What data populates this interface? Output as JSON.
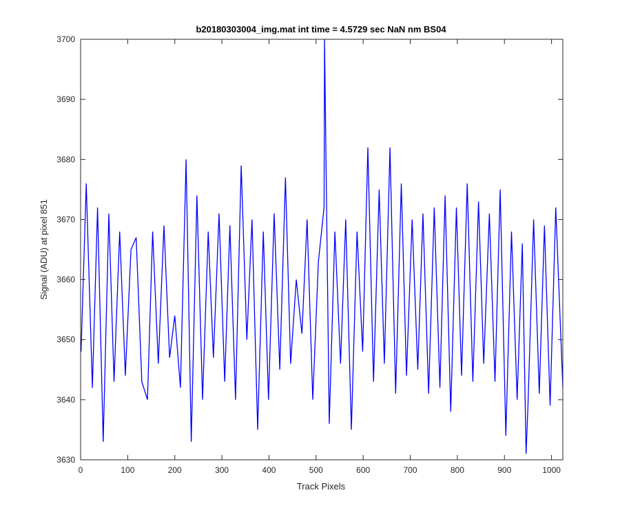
{
  "chart_data": {
    "type": "line",
    "title": "b20180303004_img.mat int time = 4.5729 sec  NaN nm BS04",
    "xlabel": "Track Pixels",
    "ylabel": "Signal (ADU) at pixel 851",
    "xlim": [
      0,
      1024
    ],
    "ylim": [
      3630,
      3700
    ],
    "xticks": [
      0,
      100,
      200,
      300,
      400,
      500,
      600,
      700,
      800,
      900,
      1000
    ],
    "yticks": [
      3630,
      3640,
      3650,
      3660,
      3670,
      3680,
      3690,
      3700
    ],
    "grid": false,
    "box": true,
    "series": [
      {
        "color": "#0000ff",
        "x": [
          1,
          12,
          25,
          36,
          48,
          60,
          71,
          83,
          95,
          107,
          118,
          130,
          142,
          153,
          165,
          177,
          189,
          200,
          212,
          224,
          235,
          247,
          259,
          271,
          282,
          294,
          306,
          317,
          329,
          341,
          353,
          364,
          376,
          388,
          399,
          411,
          423,
          435,
          446,
          458,
          470,
          481,
          493,
          505,
          517,
          518,
          528,
          540,
          552,
          563,
          575,
          587,
          599,
          610,
          622,
          634,
          645,
          657,
          669,
          681,
          692,
          704,
          716,
          727,
          739,
          751,
          763,
          774,
          786,
          798,
          809,
          821,
          833,
          845,
          856,
          868,
          880,
          891,
          903,
          915,
          927,
          938,
          946,
          950,
          962,
          974,
          985,
          997,
          1009,
          1024
        ],
        "y": [
          3648,
          3676,
          3642,
          3672,
          3633,
          3671,
          3643,
          3668,
          3644,
          3665,
          3667,
          3643,
          3640,
          3668,
          3646,
          3669,
          3647,
          3654,
          3642,
          3680,
          3633,
          3674,
          3640,
          3668,
          3647,
          3671,
          3643,
          3669,
          3640,
          3679,
          3650,
          3670,
          3635,
          3668,
          3640,
          3671,
          3645,
          3677,
          3646,
          3660,
          3651,
          3670,
          3640,
          3663,
          3672,
          3700,
          3636,
          3668,
          3646,
          3670,
          3635,
          3668,
          3648,
          3682,
          3643,
          3675,
          3646,
          3682,
          3641,
          3676,
          3644,
          3670,
          3645,
          3671,
          3641,
          3672,
          3642,
          3674,
          3638,
          3672,
          3644,
          3676,
          3643,
          3673,
          3646,
          3671,
          3643,
          3675,
          3634,
          3668,
          3640,
          3666,
          3631,
          3639,
          3670,
          3641,
          3669,
          3639,
          3672,
          3642
        ]
      }
    ]
  }
}
